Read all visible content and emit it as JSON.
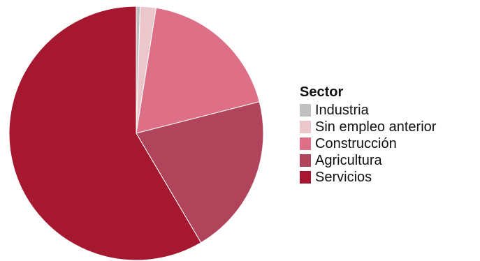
{
  "chart_data": {
    "type": "pie",
    "categories": [
      "Industria",
      "Sin empleo anterior",
      "Construcción",
      "Agricultura",
      "Servicios"
    ],
    "values": [
      0.5,
      2.0,
      18.5,
      20.5,
      58.5
    ],
    "unit": "",
    "colors": [
      "#c0c0c0",
      "#ebc6cb",
      "#dd6f86",
      "#b0445a",
      "#a5182f"
    ],
    "legend": {
      "title": "Sector",
      "position": "right"
    }
  }
}
